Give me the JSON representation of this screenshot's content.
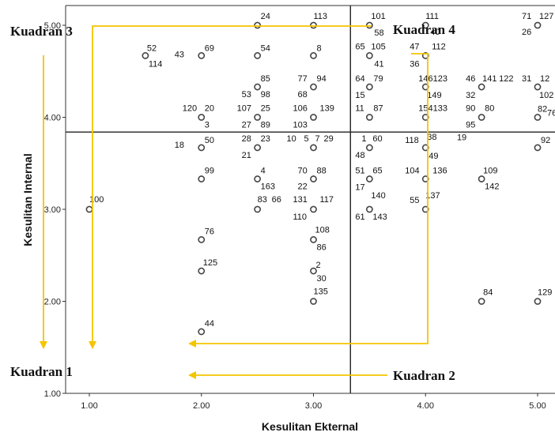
{
  "chart_data": {
    "type": "scatter",
    "xlabel": "Kesulitan Ekternal",
    "ylabel": "Kesulitan Internal",
    "xlim": [
      0.75,
      5.15
    ],
    "ylim": [
      1.0,
      5.15
    ],
    "xticks": [
      "1.00",
      "2.00",
      "3.00",
      "4.00",
      "5.00"
    ],
    "yticks": [
      "1.00",
      "2.00",
      "3.00",
      "4.00",
      "5.00"
    ],
    "x_ticks_values": [
      1,
      2,
      3,
      4,
      5
    ],
    "y_ticks_values": [
      1,
      2,
      3,
      4,
      5
    ],
    "reference_lines": {
      "x": 3.33,
      "y": 3.84
    },
    "marker_color": "#444444",
    "accent_color": "#f5c400",
    "quadrants": [
      {
        "name": "Kuadran 1"
      },
      {
        "name": "Kuadran 2"
      },
      {
        "name": "Kuadran 3"
      },
      {
        "name": "Kuadran 4"
      }
    ],
    "points": [
      {
        "x": 1.0,
        "y": 3.0,
        "labels": [
          {
            "text": "100",
            "dx": 0,
            "dy": -9
          }
        ]
      },
      {
        "x": 1.5,
        "y": 4.67,
        "labels": [
          {
            "text": "52",
            "dx": 2,
            "dy": -6
          },
          {
            "text": "114",
            "dx": 4,
            "dy": 14
          }
        ]
      },
      {
        "x": 2.0,
        "y": 4.67,
        "labels": [
          {
            "text": "69",
            "dx": 4,
            "dy": -6
          },
          {
            "text": "43",
            "dx": -34,
            "dy": 2
          }
        ]
      },
      {
        "x": 2.0,
        "y": 4.0,
        "labels": [
          {
            "text": "120",
            "dx": -24,
            "dy": -8
          },
          {
            "text": "20",
            "dx": 4,
            "dy": -8
          },
          {
            "text": "3",
            "dx": 4,
            "dy": 13
          }
        ]
      },
      {
        "x": 2.0,
        "y": 3.67,
        "labels": [
          {
            "text": "50",
            "dx": 4,
            "dy": -6
          },
          {
            "text": "18",
            "dx": -34,
            "dy": 0
          }
        ]
      },
      {
        "x": 2.0,
        "y": 3.33,
        "labels": [
          {
            "text": "99",
            "dx": 4,
            "dy": -7
          }
        ]
      },
      {
        "x": 2.0,
        "y": 2.67,
        "labels": [
          {
            "text": "76",
            "dx": 4,
            "dy": -7
          }
        ]
      },
      {
        "x": 2.0,
        "y": 2.33,
        "labels": [
          {
            "text": "125",
            "dx": 2,
            "dy": -7
          }
        ]
      },
      {
        "x": 2.0,
        "y": 1.67,
        "labels": [
          {
            "text": "44",
            "dx": 4,
            "dy": -7
          }
        ]
      },
      {
        "x": 2.5,
        "y": 5.0,
        "labels": [
          {
            "text": "24",
            "dx": 4,
            "dy": -8
          }
        ]
      },
      {
        "x": 2.5,
        "y": 4.67,
        "labels": [
          {
            "text": "54",
            "dx": 4,
            "dy": -6
          }
        ]
      },
      {
        "x": 2.5,
        "y": 4.33,
        "labels": [
          {
            "text": "85",
            "dx": 4,
            "dy": -7
          },
          {
            "text": "53",
            "dx": -20,
            "dy": 13
          },
          {
            "text": "98",
            "dx": 4,
            "dy": 13
          }
        ]
      },
      {
        "x": 2.5,
        "y": 4.0,
        "labels": [
          {
            "text": "107",
            "dx": -26,
            "dy": -8
          },
          {
            "text": "25",
            "dx": 4,
            "dy": -8
          },
          {
            "text": "27",
            "dx": -20,
            "dy": 13
          },
          {
            "text": "89",
            "dx": 4,
            "dy": 13
          }
        ]
      },
      {
        "x": 2.5,
        "y": 3.67,
        "labels": [
          {
            "text": "28",
            "dx": -20,
            "dy": -8
          },
          {
            "text": "23",
            "dx": 4,
            "dy": -8
          },
          {
            "text": "21",
            "dx": -20,
            "dy": 13
          }
        ]
      },
      {
        "x": 2.5,
        "y": 3.33,
        "labels": [
          {
            "text": "4",
            "dx": 4,
            "dy": -7
          },
          {
            "text": "163",
            "dx": 4,
            "dy": 13
          }
        ]
      },
      {
        "x": 2.5,
        "y": 3.0,
        "labels": [
          {
            "text": "83",
            "dx": 0,
            "dy": -9
          },
          {
            "text": "66",
            "dx": 18,
            "dy": -9
          }
        ]
      },
      {
        "x": 3.0,
        "y": 5.0,
        "labels": [
          {
            "text": "113",
            "dx": 0,
            "dy": -8
          }
        ]
      },
      {
        "x": 3.0,
        "y": 4.67,
        "labels": [
          {
            "text": "8",
            "dx": 4,
            "dy": -6
          }
        ]
      },
      {
        "x": 3.0,
        "y": 4.33,
        "labels": [
          {
            "text": "77",
            "dx": -20,
            "dy": -7
          },
          {
            "text": "94",
            "dx": 4,
            "dy": -7
          },
          {
            "text": "68",
            "dx": -20,
            "dy": 13
          }
        ]
      },
      {
        "x": 3.0,
        "y": 4.0,
        "labels": [
          {
            "text": "106",
            "dx": -26,
            "dy": -8
          },
          {
            "text": "139",
            "dx": 8,
            "dy": -8
          },
          {
            "text": "103",
            "dx": -26,
            "dy": 13
          }
        ]
      },
      {
        "x": 3.0,
        "y": 3.67,
        "labels": [
          {
            "text": "10",
            "dx": -34,
            "dy": -8
          },
          {
            "text": "5",
            "dx": -12,
            "dy": -8
          },
          {
            "text": "7",
            "dx": 2,
            "dy": -8
          },
          {
            "text": "29",
            "dx": 13,
            "dy": -8
          }
        ]
      },
      {
        "x": 3.0,
        "y": 3.33,
        "labels": [
          {
            "text": "70",
            "dx": -20,
            "dy": -7
          },
          {
            "text": "88",
            "dx": 4,
            "dy": -7
          },
          {
            "text": "22",
            "dx": -20,
            "dy": 13
          }
        ]
      },
      {
        "x": 3.0,
        "y": 3.0,
        "labels": [
          {
            "text": "131",
            "dx": -26,
            "dy": -9
          },
          {
            "text": "117",
            "dx": 8,
            "dy": -9
          },
          {
            "text": "110",
            "dx": -26,
            "dy": 13
          }
        ]
      },
      {
        "x": 3.0,
        "y": 2.67,
        "labels": [
          {
            "text": "108",
            "dx": 2,
            "dy": -9
          },
          {
            "text": "86",
            "dx": 4,
            "dy": 13
          }
        ]
      },
      {
        "x": 3.0,
        "y": 2.33,
        "labels": [
          {
            "text": "2",
            "dx": 3,
            "dy": -4
          },
          {
            "text": "30",
            "dx": 4,
            "dy": 13
          }
        ]
      },
      {
        "x": 3.0,
        "y": 2.0,
        "labels": [
          {
            "text": "135",
            "dx": 0,
            "dy": -9
          }
        ]
      },
      {
        "x": 3.5,
        "y": 5.0,
        "labels": [
          {
            "text": "101",
            "dx": 2,
            "dy": -8
          },
          {
            "text": "58",
            "dx": 6,
            "dy": 13
          }
        ]
      },
      {
        "x": 3.5,
        "y": 4.67,
        "labels": [
          {
            "text": "65",
            "dx": -18,
            "dy": -8
          },
          {
            "text": "105",
            "dx": 2,
            "dy": -8
          },
          {
            "text": "41",
            "dx": 6,
            "dy": 14
          }
        ]
      },
      {
        "x": 3.5,
        "y": 4.33,
        "labels": [
          {
            "text": "64",
            "dx": -18,
            "dy": -7
          },
          {
            "text": "79",
            "dx": 5,
            "dy": -7
          },
          {
            "text": "15",
            "dx": -18,
            "dy": 14
          }
        ]
      },
      {
        "x": 3.5,
        "y": 4.0,
        "labels": [
          {
            "text": "11",
            "dx": -18,
            "dy": -8
          },
          {
            "text": "87",
            "dx": 5,
            "dy": -8
          }
        ]
      },
      {
        "x": 3.5,
        "y": 3.67,
        "labels": [
          {
            "text": "1",
            "dx": -10,
            "dy": -8
          },
          {
            "text": "60",
            "dx": 4,
            "dy": -8
          },
          {
            "text": "48",
            "dx": -18,
            "dy": 13
          }
        ]
      },
      {
        "x": 3.5,
        "y": 3.33,
        "labels": [
          {
            "text": "51",
            "dx": -18,
            "dy": -7
          },
          {
            "text": "65",
            "dx": 4,
            "dy": -7
          },
          {
            "text": "17",
            "dx": -18,
            "dy": 14
          }
        ]
      },
      {
        "x": 3.5,
        "y": 3.0,
        "labels": [
          {
            "text": "140",
            "dx": 2,
            "dy": -14
          },
          {
            "text": "61",
            "dx": -18,
            "dy": 13
          },
          {
            "text": "143",
            "dx": 4,
            "dy": 13
          }
        ]
      },
      {
        "x": 4.0,
        "y": 5.0,
        "labels": [
          {
            "text": "111",
            "dx": 0,
            "dy": -8
          },
          {
            "text": "40",
            "dx": 6,
            "dy": 12
          }
        ]
      },
      {
        "x": 4.0,
        "y": 4.67,
        "labels": [
          {
            "text": "47",
            "dx": -20,
            "dy": -8
          },
          {
            "text": "112",
            "dx": 8,
            "dy": -8
          },
          {
            "text": "36",
            "dx": -20,
            "dy": 14
          }
        ]
      },
      {
        "x": 4.0,
        "y": 4.33,
        "labels": [
          {
            "text": "146123",
            "dx": -9,
            "dy": -7
          },
          {
            "text": "149",
            "dx": 2,
            "dy": 14
          }
        ]
      },
      {
        "x": 4.0,
        "y": 4.0,
        "labels": [
          {
            "text": "154133",
            "dx": -9,
            "dy": -8
          }
        ]
      },
      {
        "x": 4.0,
        "y": 3.67,
        "labels": [
          {
            "text": "118",
            "dx": -26,
            "dy": -6
          },
          {
            "text": "38",
            "dx": 2,
            "dy": -10
          },
          {
            "text": "49",
            "dx": 4,
            "dy": 14
          }
        ]
      },
      {
        "x": 4.0,
        "y": 3.33,
        "labels": [
          {
            "text": "104",
            "dx": -26,
            "dy": -7
          },
          {
            "text": "136",
            "dx": 9,
            "dy": -7
          }
        ]
      },
      {
        "x": 4.0,
        "y": 3.0,
        "labels": [
          {
            "text": "137",
            "dx": 0,
            "dy": -14
          },
          {
            "text": "55",
            "dx": -20,
            "dy": -8
          }
        ]
      },
      {
        "x": 4.5,
        "y": 4.33,
        "labels": [
          {
            "text": "46",
            "dx": -20,
            "dy": -7
          },
          {
            "text": "141",
            "dx": 1,
            "dy": -7
          },
          {
            "text": "122",
            "dx": 22,
            "dy": -7
          },
          {
            "text": "32",
            "dx": -20,
            "dy": 14
          }
        ]
      },
      {
        "x": 4.5,
        "y": 4.0,
        "labels": [
          {
            "text": "90",
            "dx": -20,
            "dy": -8
          },
          {
            "text": "80",
            "dx": 4,
            "dy": -8
          },
          {
            "text": "95",
            "dx": -20,
            "dy": 13
          }
        ]
      },
      {
        "x": 4.5,
        "y": 3.33,
        "labels": [
          {
            "text": "109",
            "dx": 2,
            "dy": -7
          },
          {
            "text": "142",
            "dx": 4,
            "dy": 13
          }
        ]
      },
      {
        "x": 4.5,
        "y": 2.0,
        "labels": [
          {
            "text": "84",
            "dx": 2,
            "dy": -8
          }
        ]
      },
      {
        "x": 5.0,
        "y": 5.0,
        "labels": [
          {
            "text": "71",
            "dx": -20,
            "dy": -8
          },
          {
            "text": "127",
            "dx": 2,
            "dy": -8
          },
          {
            "text": "26",
            "dx": -20,
            "dy": 12
          }
        ]
      },
      {
        "x": 5.0,
        "y": 4.33,
        "labels": [
          {
            "text": "31",
            "dx": -20,
            "dy": -7
          },
          {
            "text": "12",
            "dx": 3,
            "dy": -7
          },
          {
            "text": "102",
            "dx": 2,
            "dy": 14
          }
        ]
      },
      {
        "x": 5.0,
        "y": 4.0,
        "labels": [
          {
            "text": "82",
            "dx": 0,
            "dy": -7
          },
          {
            "text": "76",
            "dx": 12,
            "dy": -2
          }
        ]
      },
      {
        "x": 5.0,
        "y": 3.67,
        "labels": [
          {
            "text": "92",
            "dx": 4,
            "dy": -6
          }
        ]
      },
      {
        "x": 5.0,
        "y": 2.0,
        "labels": [
          {
            "text": "129",
            "dx": 0,
            "dy": -8
          }
        ]
      }
    ],
    "stray_labels": [
      {
        "text": "19",
        "x": 4.28,
        "y": 3.75
      }
    ]
  }
}
